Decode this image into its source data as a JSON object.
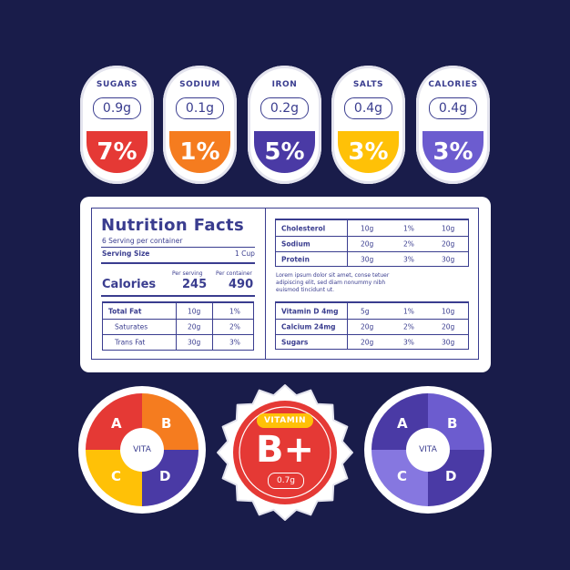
{
  "pills": [
    {
      "name": "SUGARS",
      "amount": "0.9g",
      "percent": "7%",
      "color": "#e53935"
    },
    {
      "name": "SODIUM",
      "amount": "0.1g",
      "percent": "1%",
      "color": "#f57c1f"
    },
    {
      "name": "IRON",
      "amount": "0.2g",
      "percent": "5%",
      "color": "#4a3aa5"
    },
    {
      "name": "SALTS",
      "amount": "0.4g",
      "percent": "3%",
      "color": "#ffc107"
    },
    {
      "name": "CALORIES",
      "amount": "0.4g",
      "percent": "3%",
      "color": "#6c5ccf"
    }
  ],
  "facts": {
    "title": "Nutrition Facts",
    "servings": "6 Serving per container",
    "serving_size_label": "Serving Size",
    "serving_size_value": "1 Cup",
    "per_serving_label": "Per serving",
    "per_container_label": "Per container",
    "calories_label": "Calories",
    "calories_serving": "245",
    "calories_container": "490",
    "left_rows": [
      {
        "name": "Total Fat",
        "a": "10g",
        "b": "1%"
      },
      {
        "name": "Saturates",
        "a": "20g",
        "b": "2%"
      },
      {
        "name": "Trans Fat",
        "a": "30g",
        "b": "3%"
      }
    ],
    "right_top_rows": [
      {
        "name": "Cholesterol",
        "a": "10g",
        "b": "1%",
        "c": "10g"
      },
      {
        "name": "Sodium",
        "a": "20g",
        "b": "2%",
        "c": "20g"
      },
      {
        "name": "Protein",
        "a": "30g",
        "b": "3%",
        "c": "30g"
      }
    ],
    "lorem": "Lorem ipsum dolor sit amet, conse tetuer adipiscing elit, sed diam nonummy nibh euismod tincidunt ut.",
    "right_bottom_rows": [
      {
        "name": "Vitamin D 4mg",
        "a": "5g",
        "b": "1%",
        "c": "10g"
      },
      {
        "name": "Calcium 24mg",
        "a": "20g",
        "b": "2%",
        "c": "20g"
      },
      {
        "name": "Sugars",
        "a": "20g",
        "b": "3%",
        "c": "30g"
      }
    ]
  },
  "wheel_left": {
    "hub": "VITA",
    "letters": [
      "A",
      "B",
      "C",
      "D"
    ],
    "colors": [
      "#e53935",
      "#f57c1f",
      "#ffc107",
      "#4a3aa5"
    ]
  },
  "badge": {
    "label": "VITAMIN",
    "value": "B+",
    "amount": "0.7g",
    "color": "#e53935",
    "accent": "#ffc107"
  },
  "wheel_right": {
    "hub": "VITA",
    "letters": [
      "A",
      "B",
      "C",
      "D"
    ],
    "colors": [
      "#4a3aa5",
      "#6c5ccf",
      "#8677e0",
      "#4a3aa5"
    ]
  }
}
